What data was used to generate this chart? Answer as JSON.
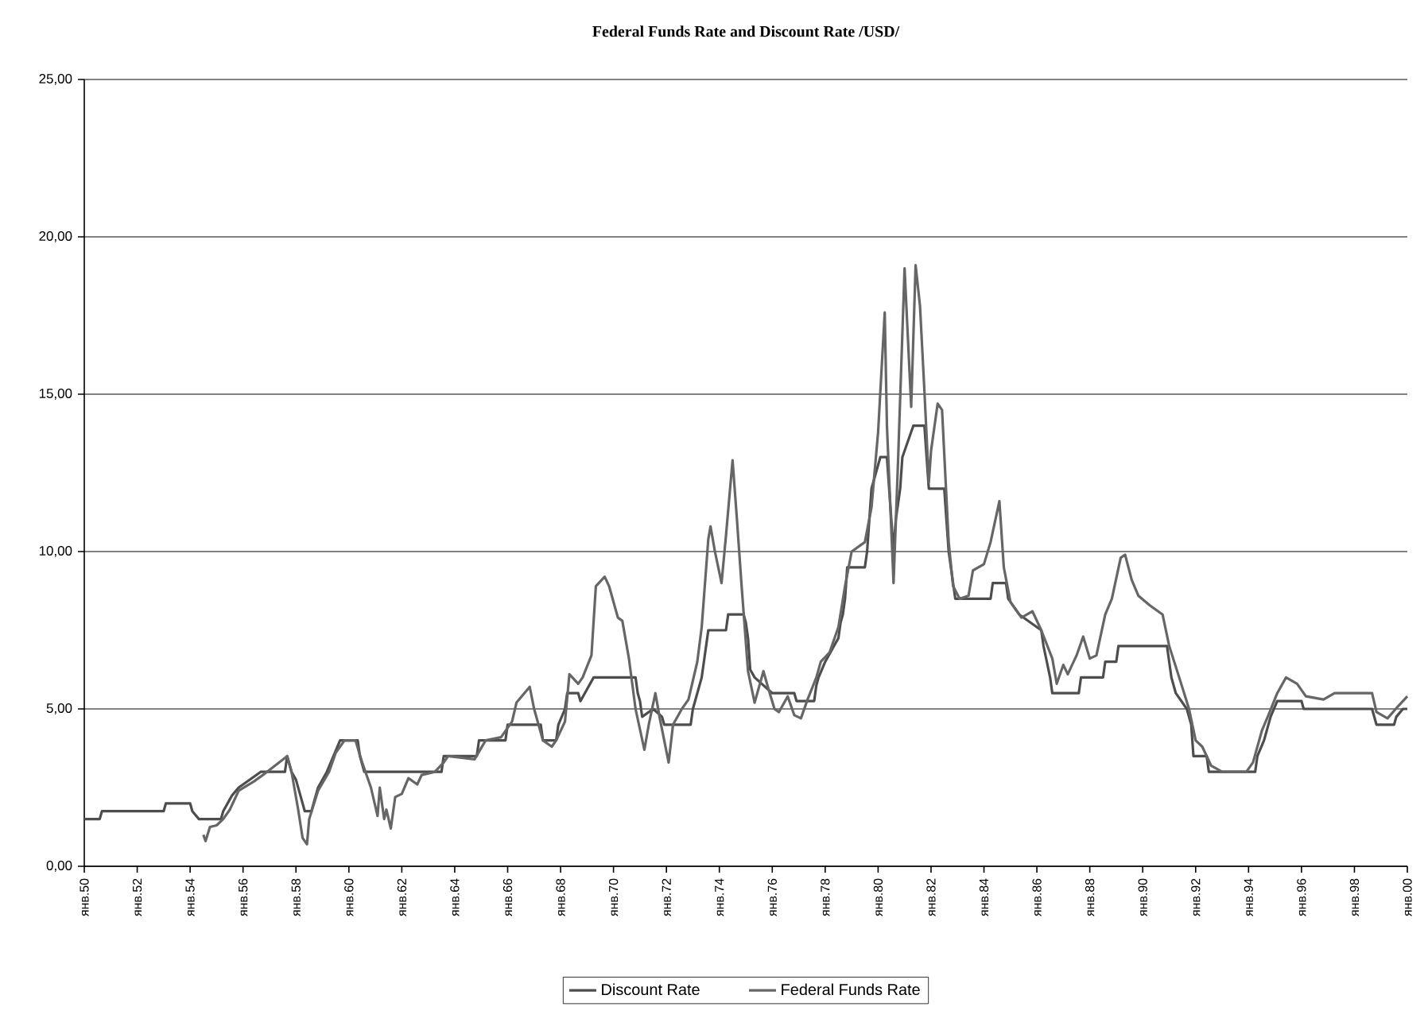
{
  "chart_data": {
    "type": "line",
    "title": "Federal Funds Rate and Discount Rate /USD/",
    "xlim": [
      "1950-01",
      "2000-01"
    ],
    "xticks": [
      {
        "value": "1950-01",
        "label": "янв.50"
      },
      {
        "value": "1952-01",
        "label": "янв.52"
      },
      {
        "value": "1954-01",
        "label": "янв.54"
      },
      {
        "value": "1956-01",
        "label": "янв.56"
      },
      {
        "value": "1958-01",
        "label": "янв.58"
      },
      {
        "value": "1960-01",
        "label": "янв.60"
      },
      {
        "value": "1962-01",
        "label": "янв.62"
      },
      {
        "value": "1964-01",
        "label": "янв.64"
      },
      {
        "value": "1966-01",
        "label": "янв.66"
      },
      {
        "value": "1968-01",
        "label": "янв.68"
      },
      {
        "value": "1970-01",
        "label": "янв.70"
      },
      {
        "value": "1972-01",
        "label": "янв.72"
      },
      {
        "value": "1974-01",
        "label": "янв.74"
      },
      {
        "value": "1976-01",
        "label": "янв.76"
      },
      {
        "value": "1978-01",
        "label": "янв.78"
      },
      {
        "value": "1980-01",
        "label": "янв.80"
      },
      {
        "value": "1982-01",
        "label": "янв.82"
      },
      {
        "value": "1984-01",
        "label": "янв.84"
      },
      {
        "value": "1986-01",
        "label": "янв.86"
      },
      {
        "value": "1988-01",
        "label": "янв.88"
      },
      {
        "value": "1990-01",
        "label": "янв.90"
      },
      {
        "value": "1992-01",
        "label": "янв.92"
      },
      {
        "value": "1994-01",
        "label": "янв.94"
      },
      {
        "value": "1996-01",
        "label": "янв.96"
      },
      {
        "value": "1998-01",
        "label": "янв.98"
      },
      {
        "value": "2000-01",
        "label": "янв.00"
      }
    ],
    "ylim": [
      0,
      25
    ],
    "yticks": [
      {
        "value": 0,
        "label": "0,00"
      },
      {
        "value": 5,
        "label": "5,00"
      },
      {
        "value": 10,
        "label": "10,00"
      },
      {
        "value": 15,
        "label": "15,00"
      },
      {
        "value": 20,
        "label": "20,00"
      },
      {
        "value": 25,
        "label": "25,00"
      }
    ],
    "grid": "y",
    "legend": "bottom",
    "marker": "none",
    "line_style": "solid",
    "series": [
      {
        "name": "Discount Rate",
        "color": "#4d4d4d",
        "x": [
          "1950-01",
          "1950-08",
          "1950-09",
          "1953-01",
          "1953-02",
          "1954-01",
          "1954-02",
          "1954-05",
          "1955-03",
          "1955-04",
          "1955-08",
          "1955-11",
          "1956-04",
          "1956-09",
          "1957-08",
          "1957-09",
          "1957-11",
          "1958-01",
          "1958-03",
          "1958-05",
          "1958-08",
          "1958-09",
          "1958-11",
          "1959-03",
          "1959-06",
          "1959-09",
          "1960-05",
          "1960-06",
          "1960-08",
          "1963-07",
          "1963-08",
          "1964-11",
          "1964-12",
          "1965-12",
          "1966-01",
          "1967-04",
          "1967-05",
          "1967-11",
          "1967-12",
          "1968-03",
          "1968-04",
          "1968-09",
          "1968-10",
          "1968-12",
          "1969-04",
          "1970-11",
          "1970-12",
          "1971-01",
          "1971-02",
          "1971-07",
          "1971-11",
          "1971-12",
          "1972-12",
          "1973-01",
          "1973-03",
          "1973-05",
          "1973-06",
          "1973-07",
          "1973-08",
          "1974-04",
          "1974-05",
          "1974-12",
          "1975-01",
          "1975-02",
          "1975-03",
          "1975-05",
          "1976-01",
          "1976-11",
          "1976-12",
          "1977-08",
          "1977-09",
          "1977-10",
          "1978-01",
          "1978-05",
          "1978-07",
          "1978-08",
          "1978-09",
          "1978-10",
          "1978-11",
          "1979-07",
          "1979-08",
          "1979-09",
          "1979-10",
          "1980-02",
          "1980-05",
          "1980-06",
          "1980-07",
          "1980-08",
          "1980-09",
          "1980-11",
          "1980-12",
          "1981-05",
          "1981-10",
          "1981-11",
          "1981-12",
          "1982-07",
          "1982-08",
          "1982-09",
          "1982-10",
          "1982-11",
          "1982-12",
          "1984-04",
          "1984-05",
          "1984-11",
          "1984-12",
          "1985-05",
          "1986-03",
          "1986-04",
          "1986-07",
          "1986-08",
          "1987-08",
          "1987-09",
          "1988-07",
          "1988-08",
          "1989-01",
          "1989-02",
          "1990-12",
          "1991-01",
          "1991-02",
          "1991-04",
          "1991-09",
          "1991-11",
          "1991-12",
          "1992-06",
          "1992-07",
          "1994-04",
          "1994-05",
          "1994-08",
          "1994-11",
          "1995-02",
          "1996-01",
          "1996-02",
          "1998-09",
          "1998-10",
          "1998-11",
          "1999-07",
          "1999-08",
          "1999-11",
          "2000-01"
        ],
        "values": [
          1.5,
          1.5,
          1.75,
          1.75,
          2.0,
          2.0,
          1.75,
          1.5,
          1.5,
          1.75,
          2.25,
          2.5,
          2.75,
          3.0,
          3.0,
          3.5,
          3.0,
          2.75,
          2.25,
          1.75,
          1.75,
          2.0,
          2.5,
          3.0,
          3.5,
          4.0,
          4.0,
          3.5,
          3.0,
          3.0,
          3.5,
          3.5,
          4.0,
          4.0,
          4.5,
          4.5,
          4.0,
          4.0,
          4.5,
          5.0,
          5.5,
          5.5,
          5.25,
          5.5,
          6.0,
          6.0,
          5.5,
          5.25,
          4.75,
          5.0,
          4.75,
          4.5,
          4.5,
          5.0,
          5.5,
          6.0,
          6.5,
          7.0,
          7.5,
          7.5,
          8.0,
          8.0,
          7.75,
          7.25,
          6.25,
          6.0,
          5.5,
          5.5,
          5.25,
          5.25,
          5.75,
          6.0,
          6.5,
          7.0,
          7.25,
          7.75,
          8.0,
          8.5,
          9.5,
          9.5,
          10.0,
          11.0,
          12.0,
          13.0,
          13.0,
          12.0,
          11.0,
          10.0,
          11.0,
          12.0,
          13.0,
          14.0,
          14.0,
          13.0,
          12.0,
          12.0,
          11.0,
          10.0,
          9.5,
          9.0,
          8.5,
          8.5,
          9.0,
          9.0,
          8.5,
          8.0,
          7.5,
          7.0,
          6.0,
          5.5,
          5.5,
          6.0,
          6.0,
          6.5,
          6.5,
          7.0,
          7.0,
          6.5,
          6.0,
          5.5,
          5.0,
          4.5,
          3.5,
          3.5,
          3.0,
          3.0,
          3.5,
          4.0,
          4.75,
          5.25,
          5.25,
          5.0,
          5.0,
          4.75,
          4.5,
          4.5,
          4.75,
          5.0,
          5.0
        ]
      },
      {
        "name": "Federal Funds Rate",
        "color": "#666666",
        "x": [
          "1954-07",
          "1954-08",
          "1954-10",
          "1955-01",
          "1955-04",
          "1955-07",
          "1955-11",
          "1956-06",
          "1956-10",
          "1957-09",
          "1957-11",
          "1958-02",
          "1958-04",
          "1958-06",
          "1958-07",
          "1958-11",
          "1959-04",
          "1959-07",
          "1959-11",
          "1960-04",
          "1960-07",
          "1960-11",
          "1961-02",
          "1961-03",
          "1961-05",
          "1961-06",
          "1961-08",
          "1961-10",
          "1962-01",
          "1962-04",
          "1962-08",
          "1962-10",
          "1963-04",
          "1963-08",
          "1963-10",
          "1964-10",
          "1965-03",
          "1965-10",
          "1966-03",
          "1966-05",
          "1966-11",
          "1967-01",
          "1967-05",
          "1967-09",
          "1967-11",
          "1968-03",
          "1968-05",
          "1968-09",
          "1968-11",
          "1969-03",
          "1969-05",
          "1969-09",
          "1969-11",
          "1970-03",
          "1970-05",
          "1970-08",
          "1970-11",
          "1971-03",
          "1971-05",
          "1971-08",
          "1971-10",
          "1972-02",
          "1972-04",
          "1972-08",
          "1972-11",
          "1973-03",
          "1973-05",
          "1973-08",
          "1973-09",
          "1973-11",
          "1974-02",
          "1974-04",
          "1974-07",
          "1974-09",
          "1974-11",
          "1975-02",
          "1975-05",
          "1975-09",
          "1975-11",
          "1976-02",
          "1976-04",
          "1976-08",
          "1976-11",
          "1977-02",
          "1977-05",
          "1977-09",
          "1977-11",
          "1978-03",
          "1978-07",
          "1978-10",
          "1979-01",
          "1979-07",
          "1979-10",
          "1980-01",
          "1980-04",
          "1980-05",
          "1980-08",
          "1980-10",
          "1981-01",
          "1981-04",
          "1981-06",
          "1981-08",
          "1981-10",
          "1981-12",
          "1982-01",
          "1982-04",
          "1982-06",
          "1982-09",
          "1982-11",
          "1983-02",
          "1983-06",
          "1983-08",
          "1984-01",
          "1984-04",
          "1984-08",
          "1984-10",
          "1985-01",
          "1985-06",
          "1985-11",
          "1986-03",
          "1986-08",
          "1986-10",
          "1987-01",
          "1987-03",
          "1987-07",
          "1987-10",
          "1988-01",
          "1988-04",
          "1988-08",
          "1988-11",
          "1989-03",
          "1989-05",
          "1989-08",
          "1989-11",
          "1990-04",
          "1990-10",
          "1991-01",
          "1991-06",
          "1991-10",
          "1992-01",
          "1992-04",
          "1992-08",
          "1993-01",
          "1993-12",
          "1994-03",
          "1994-07",
          "1994-10",
          "1995-02",
          "1995-06",
          "1995-11",
          "1996-03",
          "1996-11",
          "1997-04",
          "1998-09",
          "1998-11",
          "1999-04",
          "1999-09",
          "2000-01"
        ],
        "values": [
          1.0,
          0.8,
          1.25,
          1.3,
          1.5,
          1.8,
          2.4,
          2.7,
          2.9,
          3.5,
          3.0,
          1.8,
          0.9,
          0.7,
          1.5,
          2.4,
          3.0,
          3.6,
          4.0,
          4.0,
          3.3,
          2.5,
          1.6,
          2.5,
          1.5,
          1.8,
          1.2,
          2.2,
          2.3,
          2.8,
          2.6,
          2.9,
          3.0,
          3.3,
          3.5,
          3.4,
          4.0,
          4.1,
          4.6,
          5.2,
          5.7,
          5.0,
          4.0,
          3.8,
          4.0,
          4.6,
          6.1,
          5.8,
          6.0,
          6.7,
          8.9,
          9.2,
          8.9,
          7.9,
          7.8,
          6.6,
          5.0,
          3.7,
          4.5,
          5.5,
          4.7,
          3.3,
          4.5,
          5.0,
          5.3,
          6.5,
          7.6,
          10.4,
          10.8,
          10.0,
          9.0,
          10.5,
          12.9,
          11.0,
          9.0,
          6.2,
          5.2,
          6.2,
          5.7,
          5.0,
          4.9,
          5.4,
          4.8,
          4.7,
          5.3,
          6.0,
          6.5,
          6.8,
          7.6,
          8.9,
          10.0,
          10.3,
          11.4,
          13.8,
          17.6,
          14.0,
          9.0,
          12.8,
          19.0,
          14.6,
          19.1,
          17.8,
          15.1,
          12.2,
          13.2,
          14.7,
          14.5,
          10.3,
          8.9,
          8.5,
          8.6,
          9.4,
          9.6,
          10.3,
          11.6,
          9.5,
          8.4,
          7.9,
          8.1,
          7.5,
          6.6,
          5.8,
          6.4,
          6.1,
          6.7,
          7.3,
          6.6,
          6.7,
          8.0,
          8.5,
          9.8,
          9.9,
          9.1,
          8.6,
          8.3,
          8.0,
          7.0,
          5.9,
          5.0,
          4.0,
          3.8,
          3.2,
          3.0,
          3.0,
          3.3,
          4.3,
          4.8,
          5.5,
          6.0,
          5.8,
          5.4,
          5.3,
          5.5,
          5.5,
          4.9,
          4.7,
          5.1,
          5.4
        ]
      }
    ]
  }
}
